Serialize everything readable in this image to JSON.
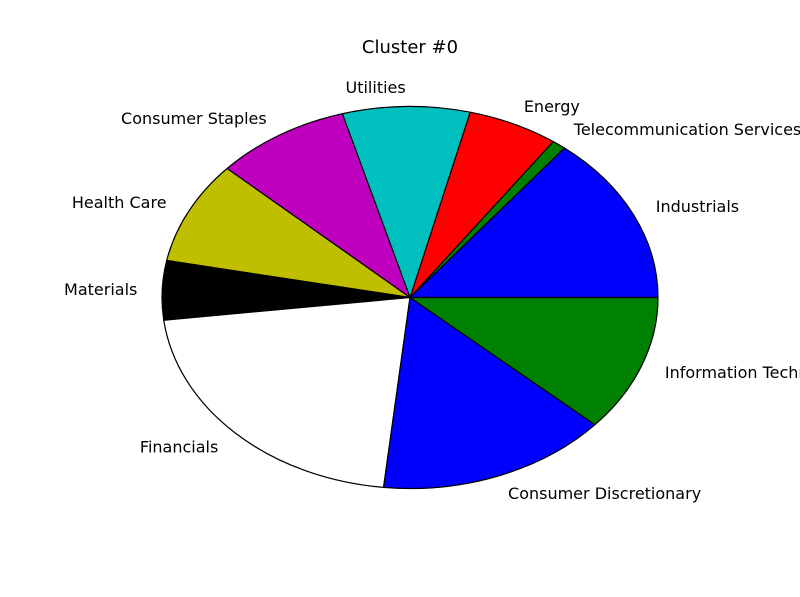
{
  "chart_data": {
    "type": "pie",
    "title": "Cluster #0",
    "start_angle_deg": 0,
    "direction": "counterclockwise",
    "slices": [
      {
        "label": "Industrials",
        "value": 14.3,
        "color": "#0000ff"
      },
      {
        "label": "Telecommunication Services",
        "value": 0.9,
        "color": "#008000"
      },
      {
        "label": "Energy",
        "value": 5.9,
        "color": "#ff0000"
      },
      {
        "label": "Utilities",
        "value": 8.3,
        "color": "#00bfbf"
      },
      {
        "label": "Consumer Staples",
        "value": 8.8,
        "color": "#bf00bf"
      },
      {
        "label": "Health Care",
        "value": 8.7,
        "color": "#bfbf00"
      },
      {
        "label": "Materials",
        "value": 5.0,
        "color": "#000000"
      },
      {
        "label": "Financials",
        "value": 21.4,
        "color": "#ffffff"
      },
      {
        "label": "Consumer Discretionary",
        "value": 15.1,
        "color": "#0000ff"
      },
      {
        "label": "Information Technology",
        "value": 11.6,
        "color": "#008000"
      }
    ]
  }
}
